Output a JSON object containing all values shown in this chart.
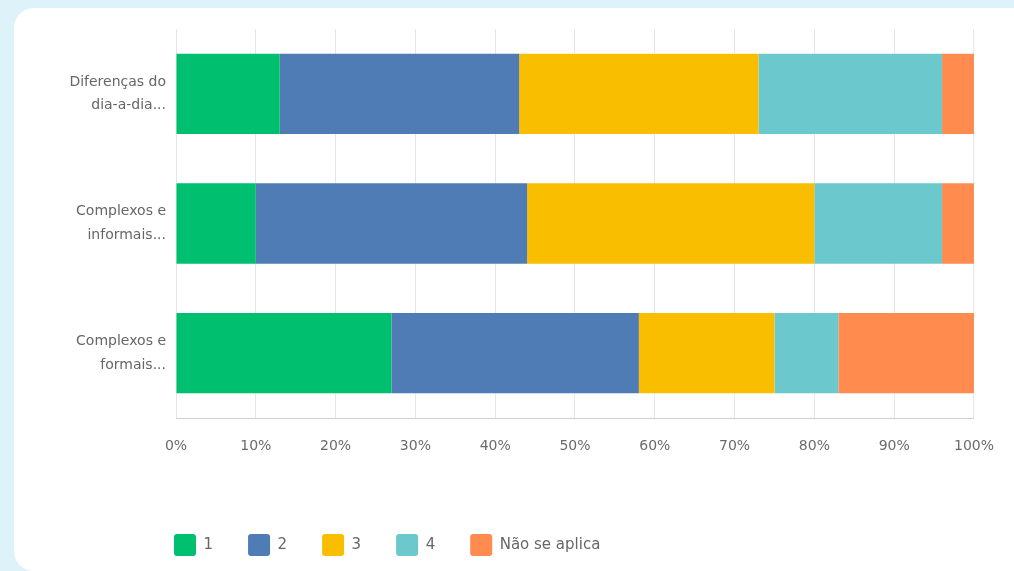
{
  "chart_data": {
    "type": "bar",
    "orientation": "horizontal",
    "stacked": true,
    "categories": [
      "Diferenças do dia-a-dia...",
      "Complexos e informais...",
      "Complexos e formais..."
    ],
    "series": [
      {
        "name": "1",
        "color": "#00bf6f",
        "values": [
          13,
          10,
          27
        ]
      },
      {
        "name": "2",
        "color": "#507cb6",
        "values": [
          30,
          34,
          31
        ]
      },
      {
        "name": "3",
        "color": "#f9be00",
        "values": [
          30,
          36,
          17
        ]
      },
      {
        "name": "4",
        "color": "#6bc8cd",
        "values": [
          23,
          16,
          8
        ]
      },
      {
        "name": "Não se aplica",
        "color": "#ff8b4f",
        "values": [
          4,
          4,
          17
        ]
      }
    ],
    "xlim": [
      0,
      100
    ],
    "xticks": [
      {
        "value": 0,
        "label": "0%"
      },
      {
        "value": 10,
        "label": "10%"
      },
      {
        "value": 20,
        "label": "20%"
      },
      {
        "value": 30,
        "label": "30%"
      },
      {
        "value": 40,
        "label": "40%"
      },
      {
        "value": 50,
        "label": "50%"
      },
      {
        "value": 60,
        "label": "60%"
      },
      {
        "value": 70,
        "label": "70%"
      },
      {
        "value": 80,
        "label": "80%"
      },
      {
        "value": 90,
        "label": "90%"
      },
      {
        "value": 100,
        "label": "100%"
      }
    ],
    "grid": "x",
    "legend": "bottom left"
  }
}
